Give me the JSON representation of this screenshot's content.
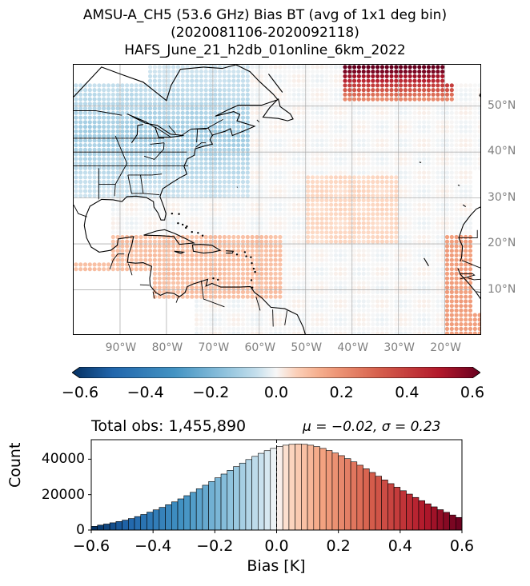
{
  "title": {
    "line1": "AMSU-A_CH5 (53.6 GHz) Bias BT (avg of 1x1 deg bin)",
    "line2": "(2020081106-2020092118)",
    "line3": "HAFS_June_21_h2db_01online_6km_2022"
  },
  "colors": {
    "colormap": "RdBu_r",
    "ocean": "#ffffff",
    "coast": "#000000",
    "grid": "#9a9a9a"
  },
  "chart_data": [
    {
      "type": "heatmap",
      "subtype": "map",
      "lon_range": [
        -100,
        -12
      ],
      "lat_range": [
        0,
        59
      ],
      "lon_ticks": [
        -90,
        -80,
        -70,
        -60,
        -50,
        -40,
        -30,
        -20
      ],
      "lon_tick_labels": [
        "90°W",
        "80°W",
        "70°W",
        "60°W",
        "50°W",
        "40°W",
        "30°W",
        "20°W"
      ],
      "lat_ticks": [
        10,
        20,
        30,
        40,
        50
      ],
      "lat_tick_labels": [
        "10°N",
        "20°N",
        "30°N",
        "40°N",
        "50°N"
      ],
      "grid": true,
      "bin_size_deg": 1,
      "values_summary": "binned bias mostly near 0 K; blue (about -0.1 to -0.3) over the eastern US and Canada; reddish (+0.1 to +0.2) over the Caribbean and Central America; strong red (+0.3 to +0.5) along 53-55°N near 20-30°W and off West Africa"
    },
    {
      "type": "colorbar",
      "vmin": -0.6,
      "vmax": 0.6,
      "ticks": [
        -0.6,
        -0.4,
        -0.2,
        0.0,
        0.2,
        0.4,
        0.6
      ],
      "tick_labels": [
        "−0.6",
        "−0.4",
        "−0.2",
        "0.0",
        "0.2",
        "0.4",
        "0.6"
      ],
      "extend": "both"
    },
    {
      "type": "bar",
      "subtype": "histogram",
      "title_left": "Total obs: 1,455,890",
      "title_right": "μ = −0.02, σ = 0.23",
      "xlabel": "Bias [K]",
      "ylabel": "Count",
      "xlim": [
        -0.6,
        0.6
      ],
      "ylim": [
        0,
        51000
      ],
      "bin_width": 0.02,
      "x_ticks": [
        -0.6,
        -0.4,
        -0.2,
        0.0,
        0.2,
        0.4,
        0.6
      ],
      "x_tick_labels": [
        "−0.6",
        "−0.4",
        "−0.2",
        "0.0",
        "0.2",
        "0.4",
        "0.6"
      ],
      "y_ticks": [
        0,
        20000,
        40000
      ],
      "y_tick_labels": [
        "0",
        "20000",
        "40000"
      ],
      "zero_line": "dashed",
      "values": [
        2100,
        2800,
        3400,
        4100,
        4800,
        5600,
        6500,
        7600,
        8800,
        10100,
        11400,
        12800,
        14300,
        15900,
        17600,
        19400,
        21300,
        23300,
        25300,
        27400,
        29500,
        31600,
        33700,
        35800,
        37800,
        39800,
        41600,
        43300,
        44800,
        46100,
        47100,
        47900,
        48400,
        48600,
        48400,
        47900,
        47100,
        46100,
        44900,
        43500,
        42000,
        40300,
        38500,
        36600,
        34600,
        32500,
        30400,
        28300,
        26200,
        24200,
        22200,
        20300,
        18400,
        16600,
        14800,
        13100,
        11500,
        10000,
        8500,
        7100
      ]
    }
  ]
}
